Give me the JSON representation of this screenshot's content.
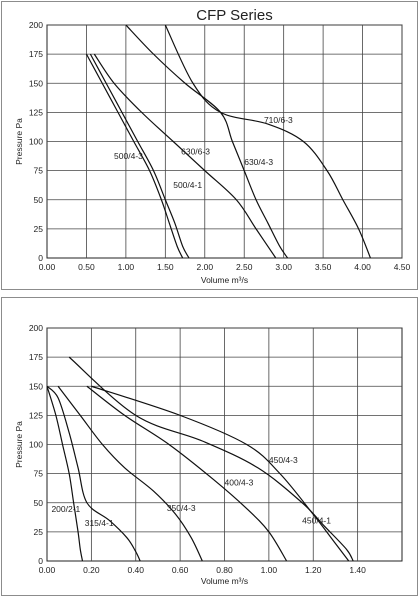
{
  "chart_data": [
    {
      "type": "line",
      "title": "CFP Series",
      "xlabel": "Volume m³/s",
      "ylabel": "Pressure Pa",
      "xlim": [
        0,
        4.5
      ],
      "ylim": [
        0,
        200
      ],
      "xticks": [
        "0.00",
        "0.50",
        "1.00",
        "1.50",
        "2.00",
        "2.50",
        "3.00",
        "3.50",
        "4.00",
        "4.50"
      ],
      "yticks": [
        "0",
        "25",
        "50",
        "75",
        "100",
        "125",
        "150",
        "175",
        "200"
      ],
      "grid": true,
      "series": [
        {
          "name": "500/4-3",
          "points": [
            [
              0.5,
              175
            ],
            [
              0.7,
              150
            ],
            [
              0.9,
              125
            ],
            [
              1.1,
              100
            ],
            [
              1.3,
              75
            ],
            [
              1.45,
              50
            ],
            [
              1.55,
              30
            ],
            [
              1.65,
              10
            ],
            [
              1.72,
              0
            ]
          ]
        },
        {
          "name": "500/4-1",
          "points": [
            [
              0.55,
              175
            ],
            [
              0.75,
              150
            ],
            [
              0.95,
              125
            ],
            [
              1.15,
              100
            ],
            [
              1.35,
              75
            ],
            [
              1.5,
              50
            ],
            [
              1.62,
              30
            ],
            [
              1.72,
              10
            ],
            [
              1.8,
              0
            ]
          ]
        },
        {
          "name": "630/6-3",
          "points": [
            [
              0.6,
              175
            ],
            [
              0.85,
              150
            ],
            [
              1.2,
              125
            ],
            [
              1.6,
              100
            ],
            [
              2.0,
              75
            ],
            [
              2.4,
              50
            ],
            [
              2.65,
              25
            ],
            [
              2.9,
              0
            ]
          ]
        },
        {
          "name": "630/4-3",
          "points": [
            [
              1.0,
              200
            ],
            [
              1.35,
              175
            ],
            [
              1.75,
              150
            ],
            [
              2.2,
              125
            ],
            [
              2.35,
              100
            ],
            [
              2.5,
              75
            ],
            [
              2.65,
              50
            ],
            [
              2.8,
              30
            ],
            [
              2.95,
              10
            ],
            [
              3.05,
              0
            ]
          ]
        },
        {
          "name": "710/6-3",
          "points": [
            [
              1.5,
              200
            ],
            [
              1.85,
              150
            ],
            [
              2.2,
              125
            ],
            [
              2.8,
              115
            ],
            [
              3.25,
              100
            ],
            [
              3.55,
              75
            ],
            [
              3.75,
              50
            ],
            [
              3.95,
              25
            ],
            [
              4.1,
              0
            ]
          ]
        }
      ],
      "labels": [
        {
          "text": "500/4-3",
          "x": 0.85,
          "y": 85
        },
        {
          "text": "500/4-1",
          "x": 1.6,
          "y": 60
        },
        {
          "text": "630/6-3",
          "x": 1.7,
          "y": 89
        },
        {
          "text": "630/4-3",
          "x": 2.5,
          "y": 80
        },
        {
          "text": "710/6-3",
          "x": 2.75,
          "y": 116
        }
      ]
    },
    {
      "type": "line",
      "title": "",
      "xlabel": "Volume m³/s",
      "ylabel": "Pressure Pa",
      "xlim": [
        0,
        1.6
      ],
      "ylim": [
        0,
        200
      ],
      "xticks": [
        "0.00",
        "0.20",
        "0.40",
        "0.60",
        "0.80",
        "1.00",
        "1.20",
        "1.40"
      ],
      "yticks": [
        "0",
        "25",
        "50",
        "75",
        "100",
        "125",
        "150",
        "175",
        "200"
      ],
      "grid": true,
      "series": [
        {
          "name": "200/2-1",
          "points": [
            [
              0.0,
              150
            ],
            [
              0.04,
              125
            ],
            [
              0.07,
              100
            ],
            [
              0.1,
              75
            ],
            [
              0.12,
              50
            ],
            [
              0.14,
              25
            ],
            [
              0.15,
              10
            ],
            [
              0.16,
              0
            ]
          ]
        },
        {
          "name": "315/4-1",
          "points": [
            [
              0.0,
              150
            ],
            [
              0.05,
              140
            ],
            [
              0.1,
              110
            ],
            [
              0.14,
              80
            ],
            [
              0.18,
              50
            ],
            [
              0.28,
              35
            ],
            [
              0.36,
              20
            ],
            [
              0.4,
              8
            ],
            [
              0.42,
              0
            ]
          ]
        },
        {
          "name": "350/4-3",
          "points": [
            [
              0.05,
              150
            ],
            [
              0.15,
              125
            ],
            [
              0.25,
              100
            ],
            [
              0.35,
              80
            ],
            [
              0.48,
              60
            ],
            [
              0.58,
              40
            ],
            [
              0.65,
              20
            ],
            [
              0.7,
              0
            ]
          ]
        },
        {
          "name": "400/4-3",
          "points": [
            [
              0.18,
              150
            ],
            [
              0.35,
              125
            ],
            [
              0.55,
              100
            ],
            [
              0.75,
              70
            ],
            [
              0.9,
              45
            ],
            [
              1.0,
              25
            ],
            [
              1.08,
              0
            ]
          ]
        },
        {
          "name": "450/4-1",
          "points": [
            [
              0.2,
              150
            ],
            [
              0.6,
              125
            ],
            [
              0.9,
              100
            ],
            [
              1.05,
              75
            ],
            [
              1.2,
              40
            ],
            [
              1.3,
              15
            ],
            [
              1.36,
              0
            ]
          ]
        },
        {
          "name": "450/4-3",
          "points": [
            [
              0.1,
              175
            ],
            [
              0.4,
              125
            ],
            [
              0.7,
              103
            ],
            [
              0.95,
              80
            ],
            [
              1.15,
              50
            ],
            [
              1.25,
              30
            ],
            [
              1.35,
              10
            ],
            [
              1.38,
              0
            ]
          ]
        }
      ],
      "labels": [
        {
          "text": "200/2-1",
          "x": 0.02,
          "y": 42
        },
        {
          "text": "315/4-1",
          "x": 0.17,
          "y": 30
        },
        {
          "text": "350/4-3",
          "x": 0.54,
          "y": 43
        },
        {
          "text": "400/4-3",
          "x": 0.8,
          "y": 65
        },
        {
          "text": "450/4-1",
          "x": 1.15,
          "y": 32
        },
        {
          "text": "450/4-3",
          "x": 1.0,
          "y": 84
        }
      ]
    }
  ]
}
